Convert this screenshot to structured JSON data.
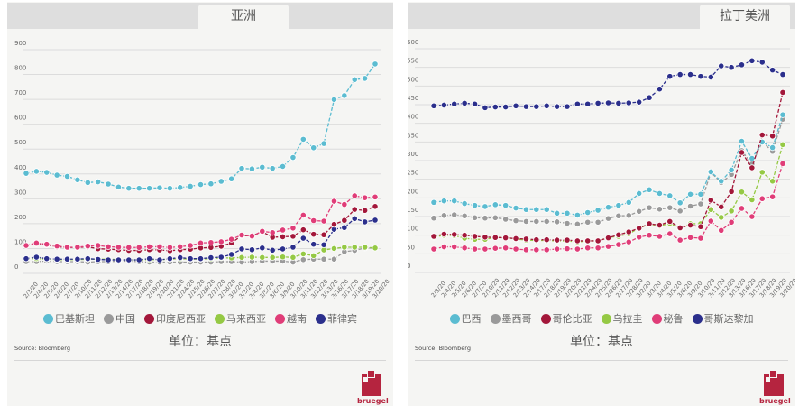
{
  "source": "Source: Bloomberg",
  "unit_label": "单位：基点",
  "logo_text": "bruegel",
  "dates": [
    "2/3/20",
    "2/4/20",
    "2/5/20",
    "2/6/20",
    "2/7/20",
    "2/10/20",
    "2/11/20",
    "2/12/20",
    "2/13/20",
    "2/14/20",
    "2/17/20",
    "2/18/20",
    "2/19/20",
    "2/20/20",
    "2/21/20",
    "2/24/20",
    "2/25/20",
    "2/26/20",
    "2/27/20",
    "2/28/20",
    "3/2/20",
    "3/3/20",
    "3/4/20",
    "3/5/20",
    "3/6/20",
    "3/9/20",
    "3/10/20",
    "3/11/20",
    "3/12/20",
    "3/13/20",
    "3/16/20",
    "3/17/20",
    "3/18/20",
    "3/19/20",
    "3/20/20"
  ],
  "chart_data": [
    {
      "type": "line",
      "title": "亚洲",
      "ylabel": "单位：基点",
      "ylim": [
        0,
        900
      ],
      "yticks": [
        0,
        100,
        200,
        300,
        400,
        500,
        600,
        700,
        800,
        900
      ],
      "grid": true,
      "legend": "bottom",
      "series": [
        {
          "name": "巴基斯坦",
          "color": "#5bbcd1",
          "values": [
            395,
            403,
            399,
            388,
            383,
            369,
            358,
            361,
            352,
            340,
            335,
            335,
            335,
            337,
            335,
            338,
            343,
            350,
            353,
            363,
            373,
            415,
            413,
            420,
            415,
            423,
            459,
            532,
            498,
            515,
            692,
            708,
            772,
            777,
            835
          ]
        },
        {
          "name": "中国",
          "color": "#9a9a9a",
          "values": [
            40,
            40,
            42,
            40,
            40,
            40,
            38,
            40,
            40,
            42,
            42,
            40,
            38,
            38,
            38,
            38,
            38,
            38,
            38,
            40,
            40,
            38,
            40,
            42,
            42,
            42,
            38,
            48,
            50,
            50,
            50,
            80,
            85,
            95,
            95
          ]
        },
        {
          "name": "印度尼西亚",
          "color": "#a3173a",
          "values": [
            105,
            112,
            108,
            100,
            97,
            97,
            100,
            92,
            90,
            88,
            85,
            85,
            88,
            87,
            84,
            88,
            90,
            95,
            97,
            102,
            115,
            145,
            143,
            160,
            138,
            140,
            142,
            168,
            150,
            148,
            190,
            206,
            250,
            246,
            262
          ]
        },
        {
          "name": "马来西亚",
          "color": "#95c944",
          "values": [
            52,
            52,
            50,
            48,
            48,
            48,
            50,
            50,
            50,
            48,
            47,
            47,
            48,
            48,
            50,
            52,
            50,
            50,
            52,
            55,
            55,
            57,
            58,
            57,
            57,
            59,
            57,
            71,
            64,
            87,
            93,
            98,
            98,
            98,
            95
          ]
        },
        {
          "name": "越南",
          "color": "#e03d78",
          "values": [
            105,
            115,
            110,
            103,
            98,
            98,
            103,
            105,
            100,
            98,
            97,
            97,
            100,
            100,
            97,
            100,
            105,
            115,
            117,
            120,
            130,
            147,
            143,
            162,
            157,
            167,
            175,
            227,
            205,
            203,
            283,
            270,
            305,
            297,
            300
          ]
        },
        {
          "name": "菲律宾",
          "color": "#2b2f8c",
          "values": [
            52,
            58,
            52,
            50,
            50,
            50,
            52,
            49,
            47,
            47,
            47,
            47,
            52,
            47,
            52,
            56,
            52,
            52,
            56,
            58,
            69,
            91,
            88,
            95,
            86,
            91,
            98,
            134,
            110,
            108,
            170,
            177,
            213,
            200,
            207
          ]
        }
      ]
    },
    {
      "type": "line",
      "title": "拉丁美洲",
      "ylabel": "单位：基点",
      "ylim": [
        0,
        600
      ],
      "yticks": [
        0,
        50,
        100,
        150,
        200,
        250,
        300,
        350,
        400,
        450,
        500,
        550,
        600
      ],
      "grid": true,
      "legend": "bottom",
      "series": [
        {
          "name": "巴西",
          "color": "#5bbcd1",
          "values": [
            183,
            187,
            187,
            180,
            175,
            172,
            177,
            175,
            168,
            164,
            164,
            164,
            154,
            154,
            149,
            156,
            162,
            170,
            175,
            183,
            207,
            217,
            207,
            201,
            182,
            205,
            205,
            265,
            240,
            270,
            347,
            301,
            345,
            330,
            418
          ]
        },
        {
          "name": "墨西哥",
          "color": "#9a9a9a",
          "values": [
            141,
            148,
            150,
            147,
            142,
            141,
            142,
            138,
            134,
            132,
            132,
            132,
            131,
            127,
            125,
            130,
            130,
            140,
            147,
            148,
            159,
            169,
            165,
            169,
            160,
            173,
            179,
            264,
            236,
            258,
            322,
            286,
            345,
            320,
            406
          ]
        },
        {
          "name": "哥伦比亚",
          "color": "#a3173a",
          "values": [
            92,
            98,
            97,
            95,
            92,
            90,
            89,
            88,
            86,
            85,
            83,
            83,
            82,
            82,
            80,
            80,
            80,
            88,
            96,
            104,
            114,
            126,
            122,
            132,
            115,
            122,
            118,
            189,
            171,
            212,
            317,
            276,
            364,
            361,
            478
          ]
        },
        {
          "name": "乌拉圭",
          "color": "#95c944",
          "values": [
            90,
            95,
            94,
            87,
            84,
            84,
            89,
            89,
            85,
            82,
            81,
            81,
            80,
            80,
            77,
            80,
            80,
            89,
            92,
            99,
            114,
            125,
            120,
            127,
            113,
            126,
            126,
            164,
            143,
            160,
            211,
            190,
            264,
            240,
            338
          ]
        },
        {
          "name": "秘鲁",
          "color": "#e03d78",
          "values": [
            58,
            64,
            64,
            61,
            58,
            58,
            60,
            61,
            58,
            56,
            56,
            56,
            58,
            59,
            58,
            61,
            61,
            65,
            70,
            77,
            90,
            95,
            92,
            99,
            82,
            89,
            87,
            133,
            108,
            130,
            167,
            145,
            193,
            198,
            287
          ]
        },
        {
          "name": "哥斯达黎加",
          "color": "#2b2f8c",
          "values": [
            442,
            444,
            447,
            449,
            447,
            437,
            439,
            439,
            442,
            440,
            440,
            442,
            440,
            440,
            447,
            447,
            449,
            450,
            449,
            450,
            452,
            464,
            487,
            521,
            526,
            526,
            521,
            519,
            549,
            545,
            552,
            563,
            559,
            538,
            526
          ]
        }
      ]
    }
  ]
}
